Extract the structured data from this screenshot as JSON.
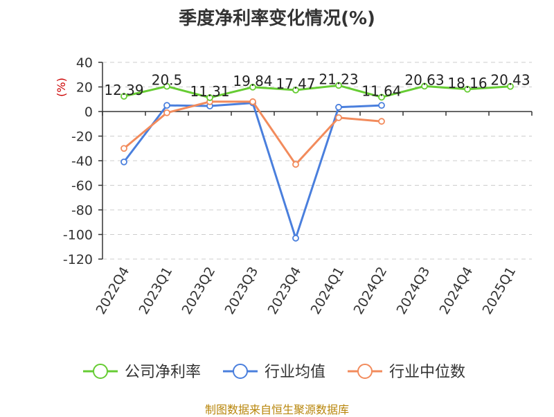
{
  "title": "季度净利率变化情况(%)",
  "source": "制图数据来自恒生聚源数据库",
  "chart_data": {
    "type": "line",
    "title": "季度净利率变化情况(%)",
    "ylabel": "(%)",
    "xlabel": "",
    "ylim": [
      -120,
      40
    ],
    "yticks": [
      40,
      20,
      0,
      -20,
      -40,
      -60,
      -80,
      -100,
      -120
    ],
    "grid": true,
    "legend_position": "bottom",
    "categories": [
      "2022Q4",
      "2023Q1",
      "2023Q2",
      "2023Q3",
      "2023Q4",
      "2024Q1",
      "2024Q2",
      "2024Q3",
      "2024Q4",
      "2025Q1"
    ],
    "series": [
      {
        "name": "公司净利率",
        "color": "#66cc33",
        "values": [
          12.39,
          20.5,
          11.31,
          19.84,
          17.47,
          21.23,
          11.64,
          20.63,
          18.16,
          20.43
        ],
        "labels": [
          "12.39",
          "20.5",
          "11.31",
          "19.84",
          "17.47",
          "21.23",
          "11.64",
          "20.63",
          "18.16",
          "20.43"
        ]
      },
      {
        "name": "行业均值",
        "color": "#4a7fdd",
        "values": [
          -41,
          5,
          4.5,
          7,
          -103,
          3.5,
          5,
          null,
          null,
          null
        ]
      },
      {
        "name": "行业中位数",
        "color": "#f28b5c",
        "values": [
          -30,
          -1,
          8,
          8,
          -43,
          -5,
          -8,
          null,
          null,
          null
        ]
      }
    ]
  }
}
